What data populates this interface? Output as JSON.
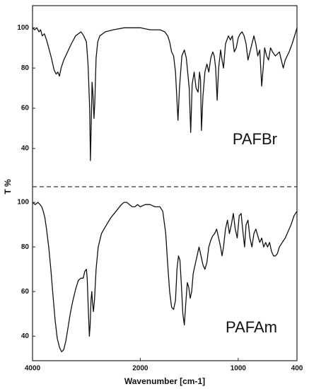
{
  "chart_data": [
    {
      "type": "line",
      "ylabel": "T %",
      "annotation": "PAFBr",
      "x": [
        4000,
        3960,
        3920,
        3880,
        3850,
        3820,
        3780,
        3740,
        3700,
        3650,
        3600,
        3560,
        3530,
        3500,
        3470,
        3420,
        3350,
        3280,
        3200,
        3150,
        3100,
        3050,
        3000,
        2970,
        2940,
        2925,
        2910,
        2895,
        2880,
        2860,
        2845,
        2820,
        2790,
        2750,
        2650,
        2500,
        2300,
        2100,
        2000,
        1900,
        1800,
        1750,
        1720,
        1700,
        1680,
        1660,
        1640,
        1615,
        1600,
        1575,
        1550,
        1530,
        1500,
        1485,
        1470,
        1450,
        1430,
        1410,
        1395,
        1385,
        1375,
        1360,
        1340,
        1320,
        1300,
        1280,
        1260,
        1245,
        1230,
        1215,
        1200,
        1180,
        1165,
        1150,
        1130,
        1100,
        1080,
        1060,
        1040,
        1020,
        1000,
        980,
        960,
        940,
        920,
        900,
        880,
        860,
        840,
        820,
        800,
        780,
        760,
        745,
        730,
        710,
        690,
        670,
        650,
        620,
        600,
        580,
        560,
        540,
        520,
        500,
        480,
        450,
        430,
        400
      ],
      "series": [
        {
          "name": "PAFBr",
          "color": "#111111",
          "values": [
            100,
            99,
            100,
            98,
            99,
            96,
            97,
            94,
            90,
            85,
            79,
            77,
            78,
            76,
            80,
            84,
            88,
            92,
            96,
            97,
            98,
            96,
            93,
            82,
            60,
            34,
            52,
            73,
            68,
            55,
            62,
            85,
            93,
            96,
            98,
            99,
            100,
            100,
            100,
            99,
            99,
            98,
            96,
            93,
            88,
            86,
            78,
            54,
            70,
            86,
            89,
            85,
            70,
            48,
            72,
            78,
            70,
            68,
            78,
            74,
            49,
            66,
            78,
            82,
            78,
            85,
            88,
            86,
            80,
            64,
            80,
            89,
            84,
            80,
            92,
            96,
            94,
            96,
            88,
            90,
            95,
            97,
            98,
            96,
            92,
            84,
            88,
            92,
            96,
            92,
            86,
            89,
            71,
            80,
            90,
            86,
            84,
            90,
            88,
            86,
            87,
            88,
            84,
            80,
            84,
            86,
            88,
            92,
            95,
            100
          ]
        }
      ],
      "xlim": [
        4000,
        400
      ],
      "ylim": [
        21,
        111
      ],
      "yticks": [
        100,
        80,
        60,
        40
      ]
    },
    {
      "type": "line",
      "xlabel": "Wavenumber [cm-1]",
      "annotation": "PAFAm",
      "x": [
        4000,
        3950,
        3900,
        3860,
        3830,
        3800,
        3770,
        3740,
        3700,
        3660,
        3620,
        3580,
        3540,
        3500,
        3460,
        3420,
        3380,
        3340,
        3300,
        3250,
        3200,
        3150,
        3100,
        3060,
        3030,
        3000,
        2985,
        2965,
        2945,
        2930,
        2915,
        2900,
        2885,
        2870,
        2850,
        2820,
        2780,
        2720,
        2650,
        2550,
        2450,
        2350,
        2300,
        2250,
        2200,
        2150,
        2100,
        2050,
        2000,
        1950,
        1900,
        1850,
        1800,
        1770,
        1740,
        1720,
        1700,
        1680,
        1660,
        1640,
        1625,
        1610,
        1595,
        1580,
        1565,
        1550,
        1535,
        1520,
        1505,
        1490,
        1475,
        1460,
        1440,
        1420,
        1400,
        1380,
        1360,
        1340,
        1320,
        1300,
        1280,
        1260,
        1240,
        1220,
        1200,
        1180,
        1165,
        1150,
        1130,
        1110,
        1090,
        1070,
        1050,
        1030,
        1010,
        990,
        970,
        950,
        935,
        920,
        900,
        880,
        860,
        840,
        820,
        800,
        780,
        760,
        740,
        720,
        700,
        680,
        660,
        640,
        620,
        600,
        580,
        550,
        520,
        490,
        460,
        430,
        400
      ],
      "series": [
        {
          "name": "PAFAm",
          "color": "#111111",
          "values": [
            100,
            99,
            100,
            99,
            98,
            96,
            93,
            88,
            80,
            70,
            58,
            47,
            39,
            35,
            33,
            34,
            38,
            44,
            50,
            56,
            61,
            65,
            66,
            66,
            69,
            70,
            66,
            52,
            40,
            45,
            56,
            60,
            55,
            51,
            56,
            70,
            80,
            86,
            89,
            93,
            96,
            99,
            100,
            100,
            99,
            98,
            98,
            99,
            98,
            99,
            99,
            98,
            98,
            96,
            86,
            72,
            60,
            53,
            52,
            56,
            70,
            76,
            74,
            63,
            50,
            45,
            55,
            64,
            62,
            57,
            60,
            68,
            72,
            76,
            80,
            76,
            72,
            70,
            73,
            80,
            83,
            85,
            86,
            88,
            84,
            80,
            76,
            80,
            88,
            92,
            86,
            90,
            95,
            88,
            84,
            94,
            95,
            86,
            80,
            90,
            92,
            84,
            80,
            86,
            88,
            85,
            82,
            84,
            80,
            82,
            80,
            82,
            78,
            76,
            76,
            77,
            80,
            82,
            84,
            87,
            90,
            94,
            96
          ]
        }
      ],
      "xlim": [
        4000,
        400
      ],
      "xticks": [
        4000,
        2000,
        1000,
        400
      ],
      "ylim": [
        29,
        107
      ],
      "yticks": [
        100,
        80,
        60,
        40
      ]
    }
  ]
}
